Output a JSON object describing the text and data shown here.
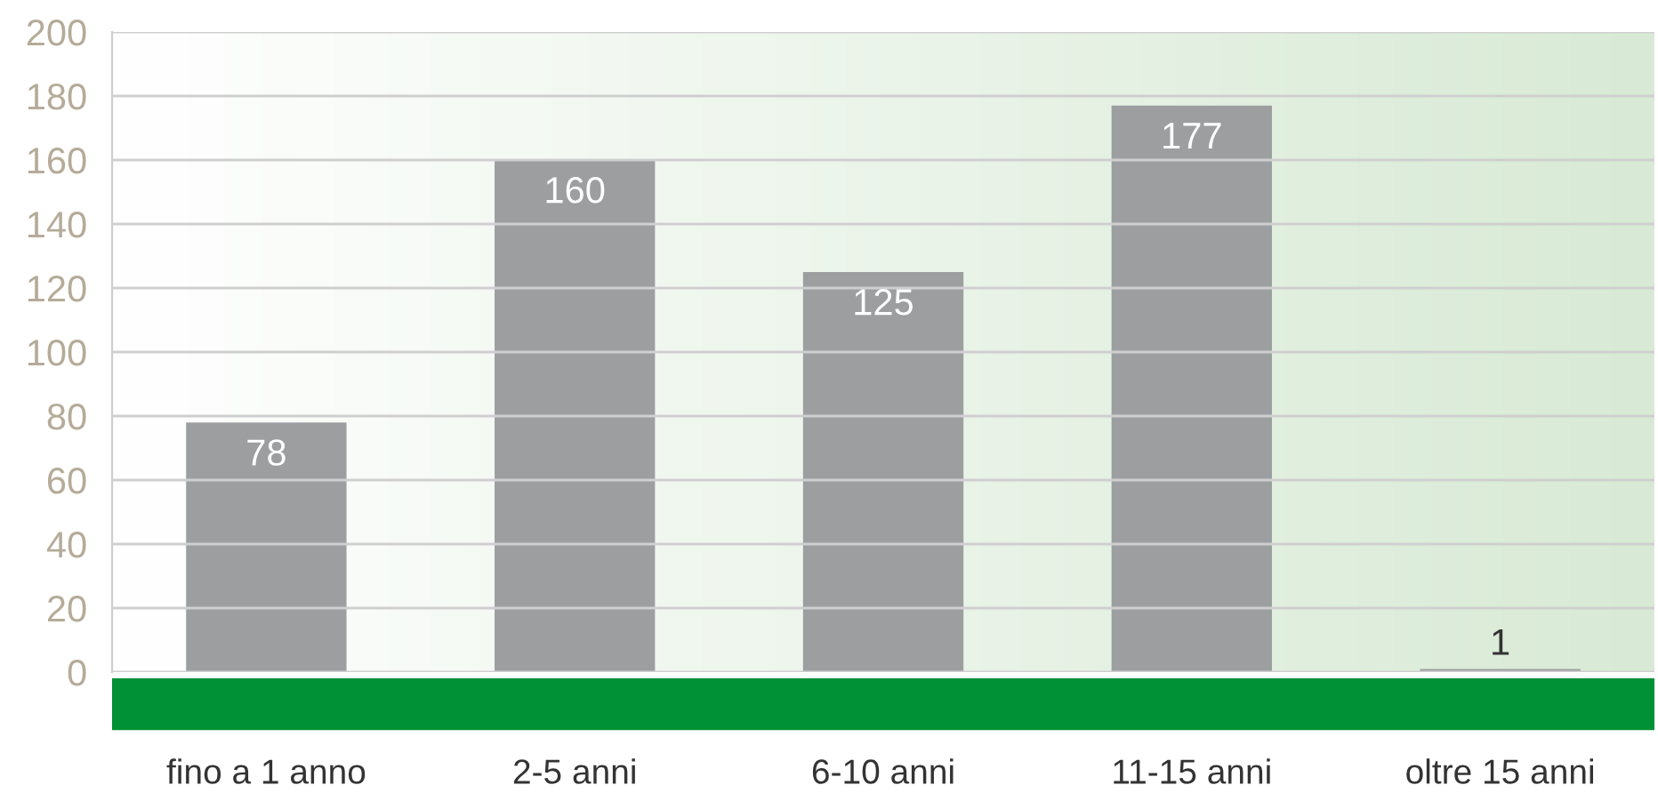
{
  "chart_data": {
    "type": "bar",
    "categories": [
      "fino a 1 anno",
      "2-5 anni",
      "6-10 anni",
      "11-15 anni",
      "oltre 15 anni"
    ],
    "values": [
      78,
      160,
      125,
      177,
      1
    ],
    "color": "#9d9ea0",
    "ylim": [
      0,
      200
    ],
    "yticks": [
      0,
      20,
      40,
      60,
      80,
      100,
      120,
      140,
      160,
      180,
      200
    ],
    "grid": "y",
    "data_labels": true
  }
}
